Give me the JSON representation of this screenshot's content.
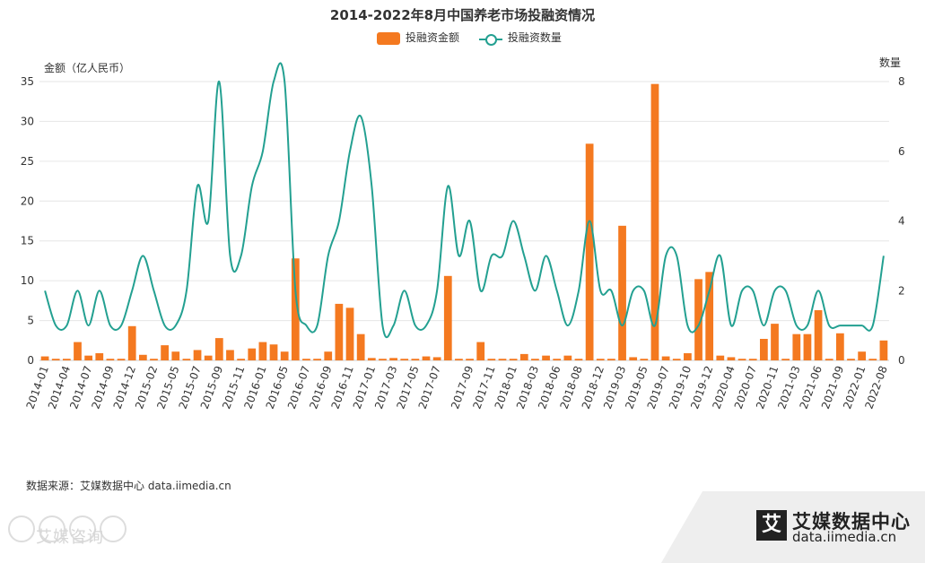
{
  "chart_data": {
    "type": "bar+line",
    "title": "2014-2022年8月中国养老市场投融资情况",
    "ylabel_left": "金额（亿人民币）",
    "ylabel_right": "数量",
    "ylim_left": [
      0,
      35
    ],
    "ylim_right": [
      0,
      8
    ],
    "yticks_left": [
      "0",
      "5",
      "10",
      "15",
      "20",
      "25",
      "30",
      "35"
    ],
    "yticks_right": [
      "0",
      "2",
      "4",
      "6",
      "8"
    ],
    "grid": true,
    "legend_position": "top-center",
    "x_tick_labels": [
      "2014-01",
      "2014-04",
      "2014-07",
      "2014-09",
      "2014-12",
      "2015-02",
      "2015-05",
      "2015-07",
      "2015-09",
      "2015-11",
      "2016-01",
      "2016-05",
      "2016-07",
      "2016-09",
      "2016-11",
      "2017-01",
      "2017-03",
      "2017-05",
      "2017-07",
      "2017-09",
      "2017-11",
      "2018-01",
      "2018-03",
      "2018-06",
      "2018-08",
      "2018-12",
      "2019-03",
      "2019-05",
      "2019-07",
      "2019-10",
      "2019-12",
      "2020-04",
      "2020-07",
      "2020-11",
      "2021-03",
      "2021-06",
      "2021-09",
      "2022-01",
      "2022-08"
    ],
    "series": [
      {
        "name": "投融资金额",
        "kind": "bar",
        "axis": "left",
        "color": "#f47920",
        "values": [
          0.5,
          0.2,
          0.2,
          2.3,
          0.6,
          0.9,
          0.2,
          0.2,
          4.3,
          0.7,
          0.2,
          1.9,
          1.1,
          0.2,
          1.3,
          0.6,
          2.8,
          1.3,
          0.2,
          1.5,
          2.3,
          2.0,
          1.1,
          12.8,
          0.2,
          0.2,
          1.1,
          7.1,
          6.6,
          3.3,
          0.3,
          0.2,
          0.3,
          0.2,
          0.2,
          0.5,
          0.4,
          10.6,
          0.2,
          0.2,
          2.3,
          0.2,
          0.2,
          0.2,
          0.8,
          0.2,
          0.6,
          0.2,
          0.6,
          0.2,
          27.2,
          0.2,
          0.2,
          16.9,
          0.4,
          0.2,
          34.7,
          0.5,
          0.2,
          0.9,
          10.2,
          11.1,
          0.6,
          0.4,
          0.2,
          0.2,
          2.7,
          4.6,
          0.2,
          3.3,
          3.3,
          6.3,
          0.2,
          3.4,
          0.2,
          1.1,
          0.2,
          2.5
        ]
      },
      {
        "name": "投融资数量",
        "kind": "line",
        "axis": "right",
        "color": "#23a091",
        "values": [
          2,
          1,
          1,
          2,
          1,
          2,
          1,
          1,
          2,
          3,
          2,
          1,
          1,
          2,
          5,
          4,
          8,
          3,
          3,
          5,
          6,
          8,
          8,
          2,
          1,
          1,
          3,
          4,
          6,
          7,
          5,
          1,
          1,
          2,
          1,
          1,
          2,
          5,
          3,
          4,
          2,
          3,
          3,
          4,
          3,
          2,
          3,
          2,
          1,
          2,
          4,
          2,
          2,
          1,
          2,
          2,
          1,
          3,
          3,
          1,
          1,
          2,
          3,
          1,
          2,
          2,
          1,
          2,
          2,
          1,
          1,
          2,
          1,
          1,
          1,
          1,
          1,
          3
        ]
      }
    ]
  },
  "source_text": "数据来源：艾媒数据中心 data.iimedia.cn",
  "watermark_left": "艾媒咨询",
  "brand": {
    "name_cn": "艾媒数据中心",
    "url": "data.iimedia.cn",
    "logo_char": "艾"
  }
}
